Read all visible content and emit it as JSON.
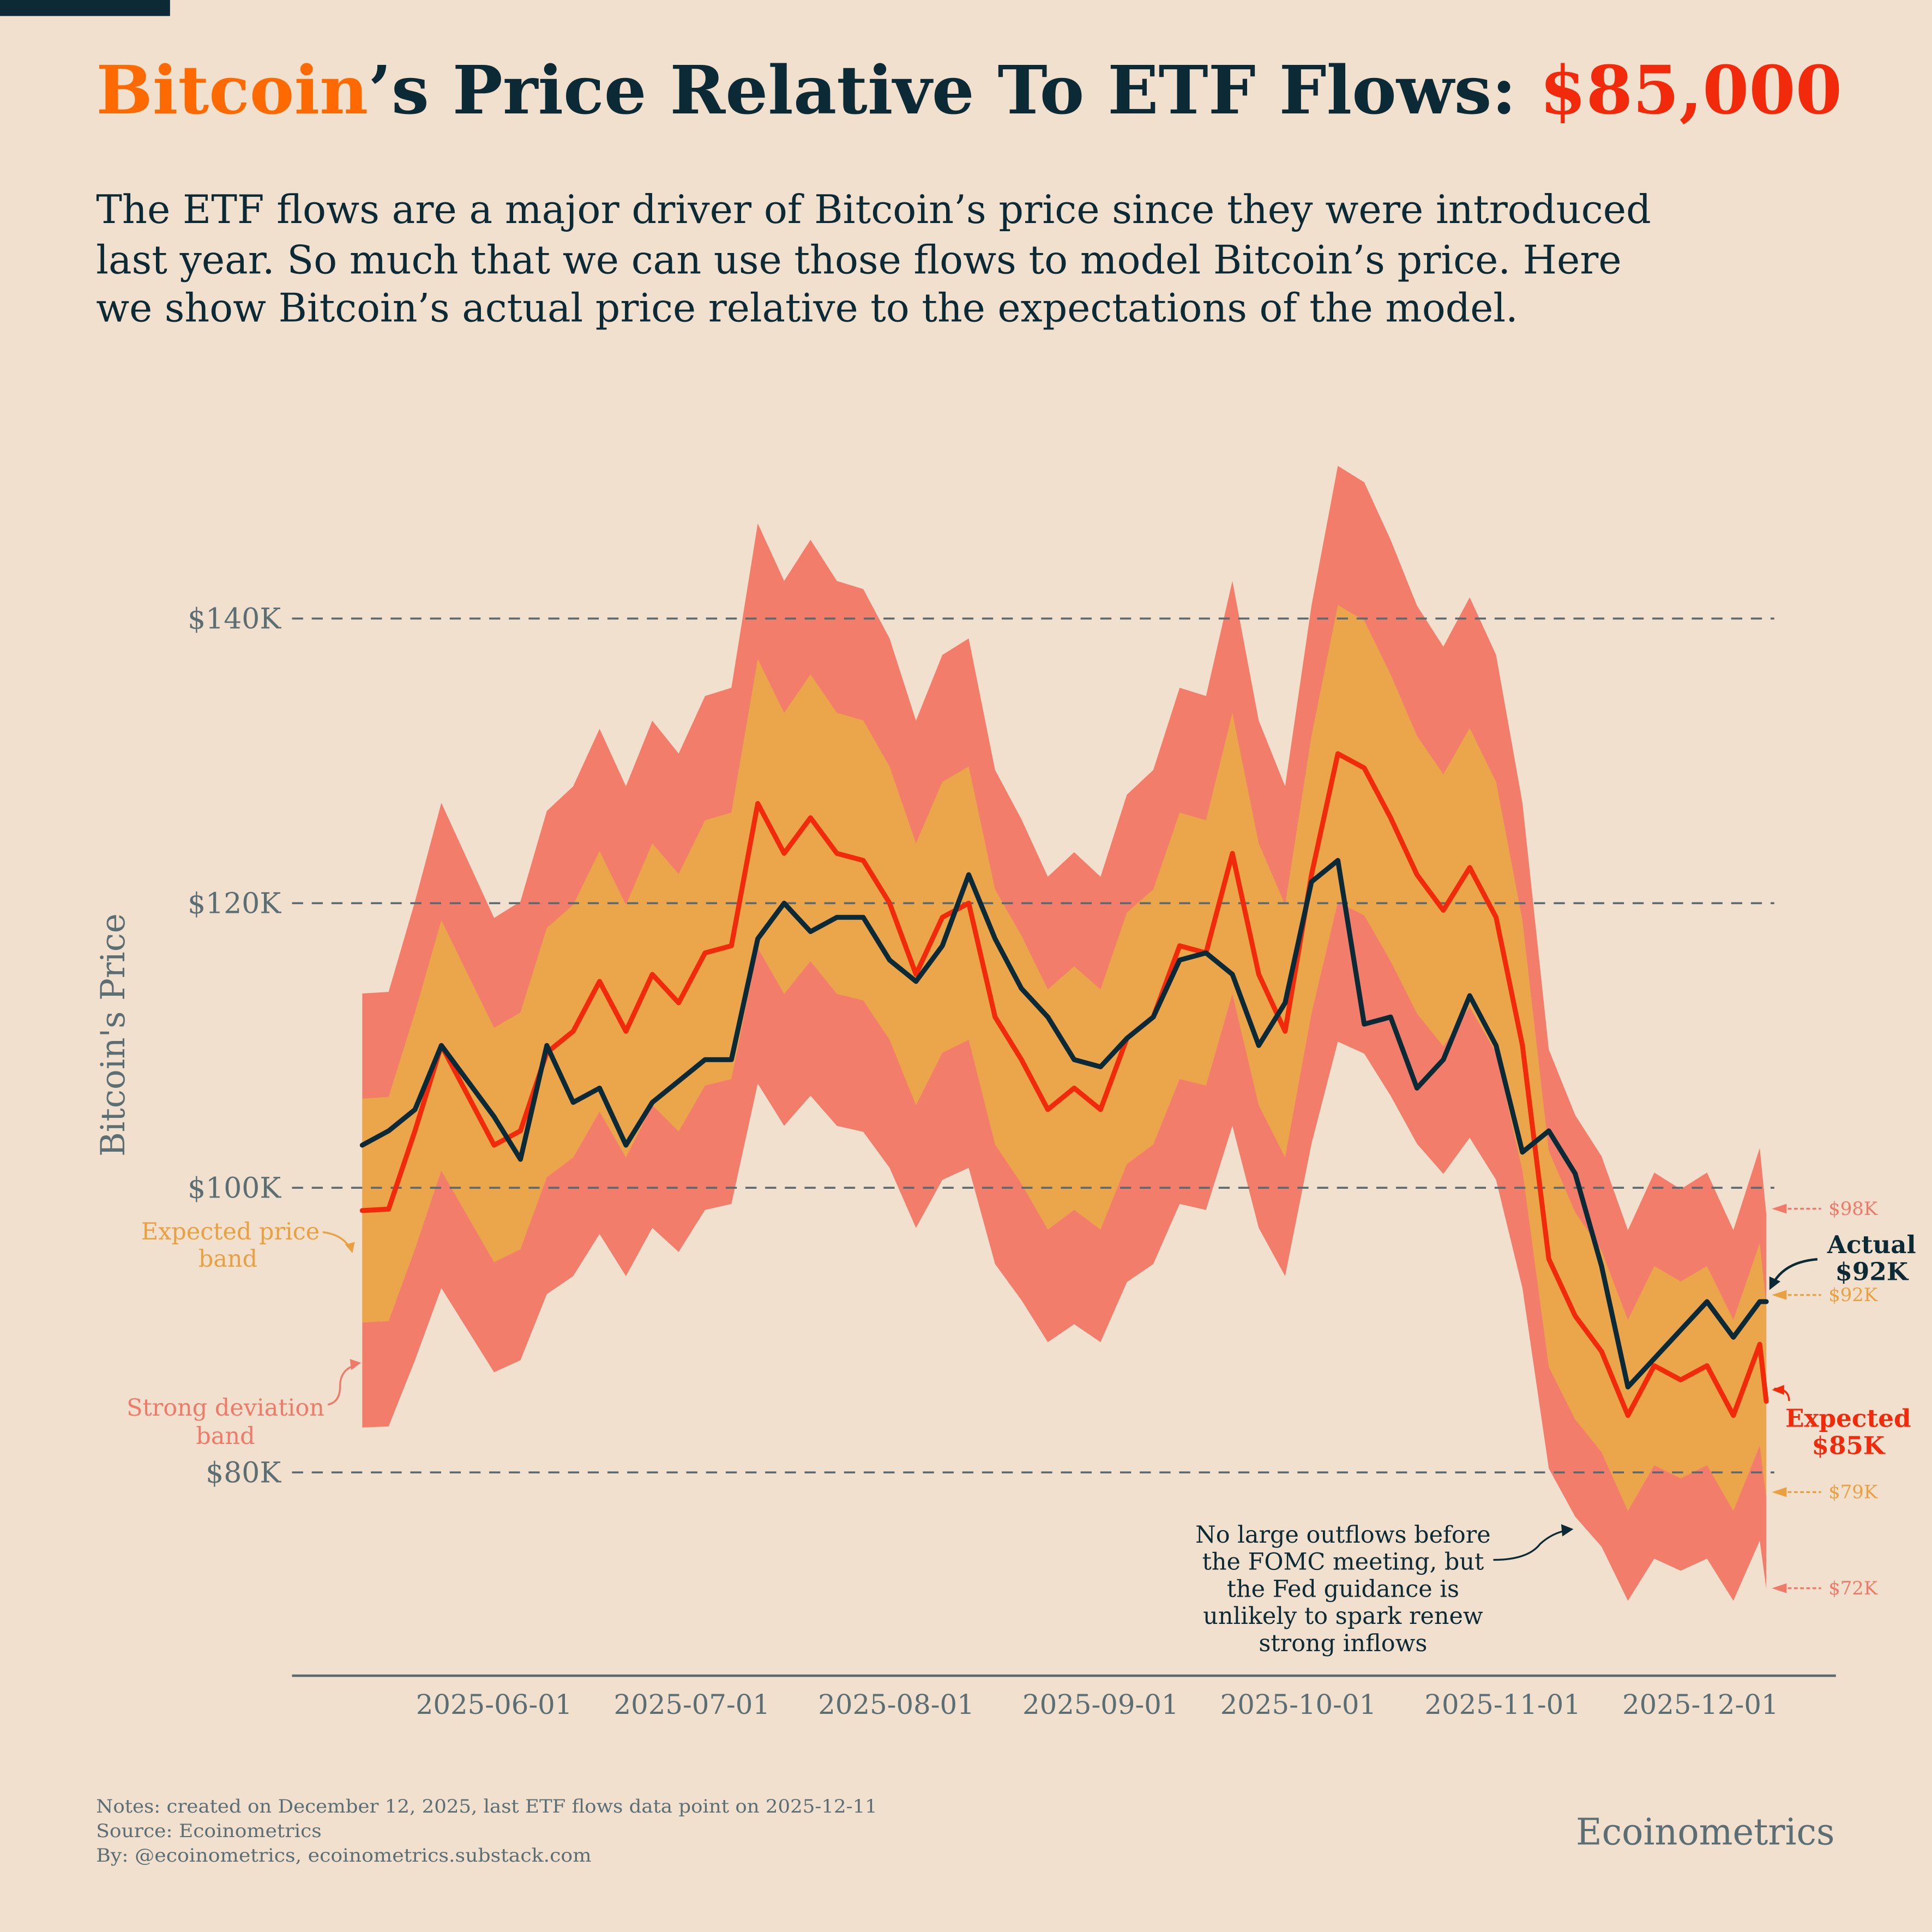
{
  "title": {
    "part1": "Bitcoin",
    "part2": "’s Price Relative To ETF Flows: ",
    "part3": "$85,000"
  },
  "subtitle": [
    "The ETF flows are a major driver of Bitcoin’s price since they were introduced",
    "last year. So much that we can use those flows to model Bitcoin’s price. Here",
    "we show Bitcoin’s actual price relative to the expectations of the model."
  ],
  "colors": {
    "background": "#f2e0cf",
    "dark": "#0b2a35",
    "bitcoin_orange": "#ff6a00",
    "expected_red": "#f02a0a",
    "expected_band": "#eba54b",
    "strong_band": "#f27d6b",
    "grid": "#5a6a70"
  },
  "chart_data": {
    "type": "line",
    "ylabel": "Bitcoin's Price",
    "xlabel": "",
    "ylim": [
      65000,
      152000
    ],
    "yticks": [
      {
        "value": 80000,
        "label": "$80K"
      },
      {
        "value": 100000,
        "label": "$100K"
      },
      {
        "value": 120000,
        "label": "$120K"
      },
      {
        "value": 140000,
        "label": "$140K"
      }
    ],
    "xticks": [
      "2025-06-01",
      "2025-07-01",
      "2025-08-01",
      "2025-09-01",
      "2025-10-01",
      "2025-11-01",
      "2025-12-01"
    ],
    "grid": "horizontal dashed",
    "bands": {
      "expected_price_band_pct": 8,
      "strong_deviation_band_pct": 15.5
    },
    "x": [
      "2025-05-12",
      "2025-05-16",
      "2025-05-20",
      "2025-05-24",
      "2025-05-28",
      "2025-06-01",
      "2025-06-05",
      "2025-06-09",
      "2025-06-13",
      "2025-06-17",
      "2025-06-21",
      "2025-06-25",
      "2025-06-29",
      "2025-07-03",
      "2025-07-07",
      "2025-07-11",
      "2025-07-15",
      "2025-07-19",
      "2025-07-23",
      "2025-07-27",
      "2025-07-31",
      "2025-08-04",
      "2025-08-08",
      "2025-08-12",
      "2025-08-16",
      "2025-08-20",
      "2025-08-24",
      "2025-08-28",
      "2025-09-01",
      "2025-09-05",
      "2025-09-09",
      "2025-09-13",
      "2025-09-17",
      "2025-09-21",
      "2025-09-25",
      "2025-09-29",
      "2025-10-03",
      "2025-10-07",
      "2025-10-11",
      "2025-10-15",
      "2025-10-19",
      "2025-10-23",
      "2025-10-27",
      "2025-10-31",
      "2025-11-04",
      "2025-11-08",
      "2025-11-12",
      "2025-11-16",
      "2025-11-20",
      "2025-11-24",
      "2025-11-28",
      "2025-12-02",
      "2025-12-06",
      "2025-12-10",
      "2025-12-11"
    ],
    "series": [
      {
        "name": "Expected",
        "values": [
          98400,
          98500,
          104000,
          110000,
          106500,
          103000,
          104000,
          109500,
          111000,
          114500,
          111000,
          115000,
          113000,
          116500,
          117000,
          127000,
          123500,
          126000,
          123500,
          123000,
          120000,
          115000,
          119000,
          120000,
          112000,
          109000,
          105500,
          107000,
          105500,
          110500,
          112000,
          117000,
          116500,
          123500,
          115000,
          111000,
          122000,
          130500,
          129500,
          126000,
          122000,
          119500,
          122500,
          119000,
          110000,
          95000,
          91000,
          88500,
          84000,
          87500,
          86500,
          87500,
          84000,
          89000,
          85000
        ]
      },
      {
        "name": "Actual",
        "values": [
          103000,
          104000,
          105500,
          110000,
          107500,
          105000,
          102000,
          110000,
          106000,
          107000,
          103000,
          106000,
          107500,
          109000,
          109000,
          117500,
          120000,
          118000,
          119000,
          119000,
          116000,
          114500,
          117000,
          122000,
          117500,
          114000,
          112000,
          109000,
          108500,
          110500,
          112000,
          116000,
          116500,
          115000,
          110000,
          113000,
          121500,
          123000,
          111500,
          112000,
          107000,
          109000,
          113500,
          110000,
          102500,
          104000,
          101000,
          94500,
          86000,
          88000,
          90000,
          92000,
          89500,
          92000,
          92000
        ]
      }
    ],
    "annotations": {
      "expected_band_label": [
        "Expected price",
        "band"
      ],
      "strong_band_label": [
        "Strong deviation",
        "band"
      ],
      "actual_label": [
        "Actual",
        "$92K"
      ],
      "expected_label": [
        "Expected",
        "$85K"
      ],
      "right_levels": [
        {
          "label": "$98K",
          "kind": "strong"
        },
        {
          "label": "$92K",
          "kind": "expected"
        },
        {
          "label": "$79K",
          "kind": "expected"
        },
        {
          "label": "$72K",
          "kind": "strong"
        }
      ],
      "note": [
        "No large outflows before",
        "the FOMC meeting, but",
        "the Fed guidance is",
        "unlikely to spark renew",
        "strong inflows"
      ]
    }
  },
  "footer": {
    "notes": "Notes: created on December 12, 2025, last ETF flows data point on 2025-12-11",
    "source": "Source: Ecoinometrics",
    "by": "By: @ecoinometrics, ecoinometrics.substack.com",
    "brand": "Ecoinometrics"
  }
}
